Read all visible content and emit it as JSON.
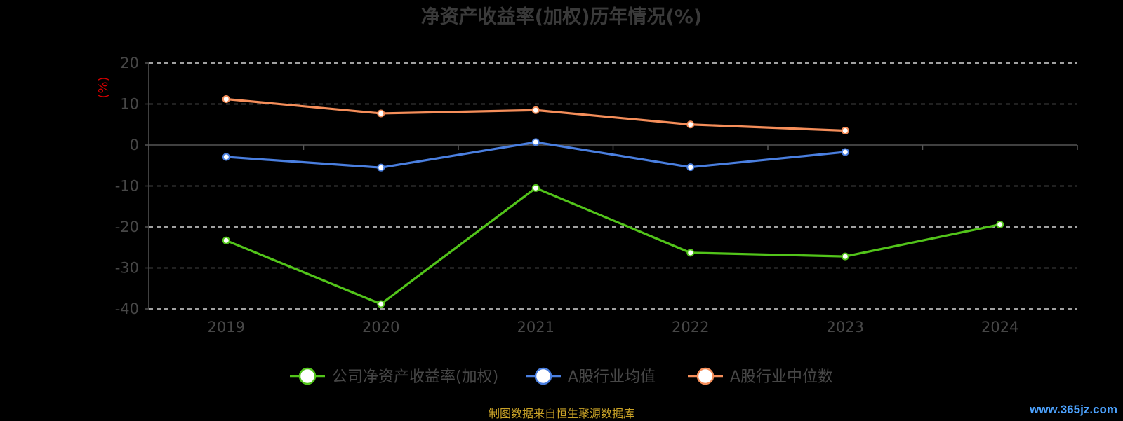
{
  "colors": {
    "background": "#000000",
    "title": "#3a3a3a",
    "axis_text": "#474747",
    "ylabel": "#d40000",
    "grid": "#ffffff",
    "axis_line": "#555555",
    "source": "#c9a227",
    "watermark": "#4da3ff"
  },
  "source_text": "制图数据来自恒生聚源数据库",
  "watermark": "www.365jz.com",
  "chart_data": {
    "type": "line",
    "title": "净资产收益率(加权)历年情况(%)",
    "ylabel": "(%)",
    "xlabel": "",
    "categories": [
      "2019",
      "2020",
      "2021",
      "2022",
      "2023",
      "2024"
    ],
    "ylim": [
      -40,
      20
    ],
    "yticks": [
      20,
      10,
      0,
      -10,
      -20,
      -30,
      -40
    ],
    "grid": true,
    "legend_position": "bottom",
    "series": [
      {
        "name": "公司净资产收益率(加权)",
        "color": "#52c41a",
        "values": [
          -23.3,
          -38.8,
          -10.5,
          -26.3,
          -27.2,
          -19.4
        ]
      },
      {
        "name": "A股行业均值",
        "color": "#4a7fe0",
        "values": [
          -2.9,
          -5.5,
          0.7,
          -5.4,
          -1.7,
          null
        ]
      },
      {
        "name": "A股行业中位数",
        "color": "#f58e5a",
        "values": [
          11.2,
          7.7,
          8.5,
          5.0,
          3.5,
          null
        ]
      }
    ]
  }
}
